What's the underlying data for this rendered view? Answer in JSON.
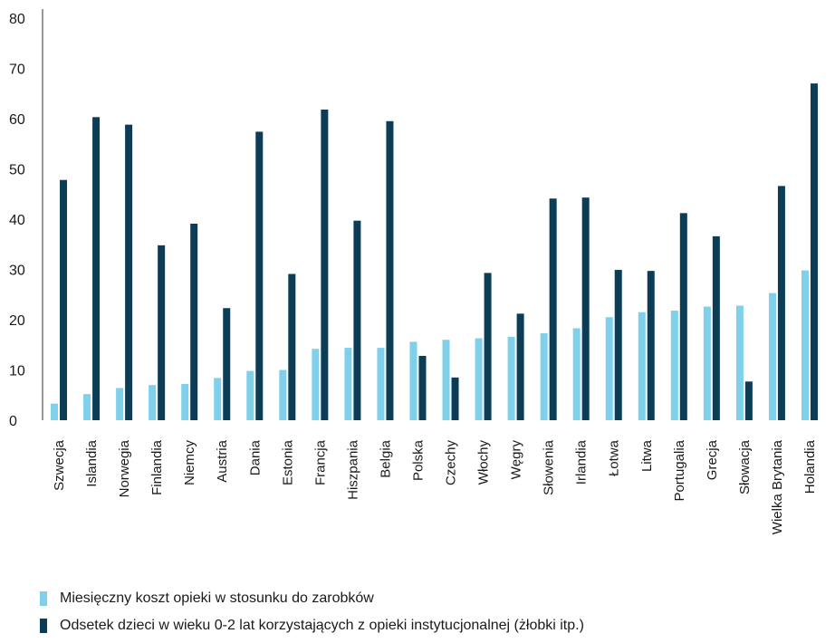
{
  "chart_data": {
    "type": "bar",
    "categories": [
      "Szwecja",
      "Islandia",
      "Norwegia",
      "Finlandia",
      "Niemcy",
      "Austria",
      "Dania",
      "Estonia",
      "Francja",
      "Hiszpania",
      "Belgia",
      "Polska",
      "Czechy",
      "Włochy",
      "Węgry",
      "Słowenia",
      "Irlandia",
      "Łotwa",
      "Litwa",
      "Portugalia",
      "Grecja",
      "Słowacja",
      "Wielka Brytania",
      "Holandia"
    ],
    "series": [
      {
        "name": "Miesięczny koszt opieki w stosunku do zarobków",
        "color": "#7fd0ea",
        "values": [
          3.3,
          5.2,
          6.4,
          7.0,
          7.2,
          8.4,
          9.8,
          10.0,
          14.2,
          14.4,
          14.4,
          15.6,
          16.0,
          16.3,
          16.6,
          17.3,
          18.3,
          20.5,
          21.5,
          21.8,
          22.6,
          22.8,
          25.3,
          29.8
        ]
      },
      {
        "name": "Odsetek dzieci w wieku 0-2 lat korzystających z opieki instytucjonalnej (żłobki itp.)",
        "color": "#0b3d57",
        "values": [
          47.8,
          60.3,
          58.8,
          34.8,
          39.1,
          22.3,
          57.4,
          29.1,
          61.8,
          39.7,
          59.5,
          12.8,
          8.5,
          29.3,
          21.2,
          44.1,
          44.3,
          29.9,
          29.7,
          41.2,
          36.6,
          7.7,
          46.6,
          67.0
        ]
      }
    ],
    "ylim": [
      0,
      80
    ],
    "yticks": [
      0,
      10,
      20,
      30,
      40,
      50,
      60,
      70,
      80
    ],
    "grid": false,
    "legend_position": "bottom-left",
    "xlabel": "",
    "ylabel": ""
  }
}
